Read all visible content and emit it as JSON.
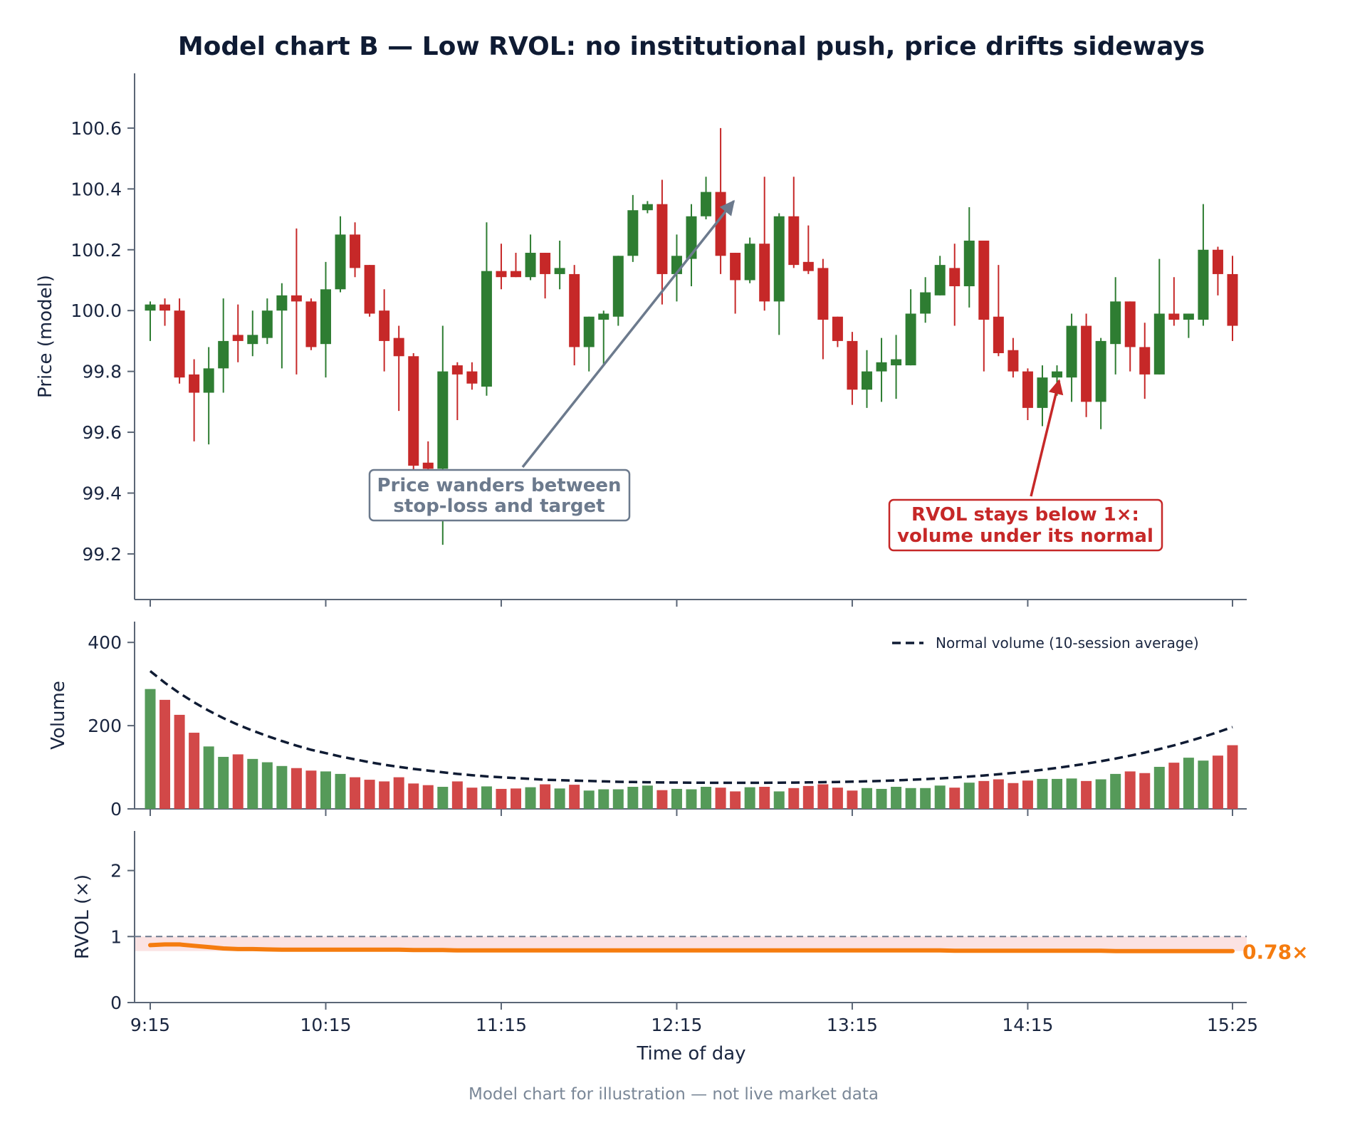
{
  "title": "Model chart B — Low RVOL: no institutional push, price drifts sideways",
  "footer": "Model chart for illustration — not live market data",
  "colors": {
    "up": "#2e7d32",
    "down": "#c62828",
    "up_volume": "#559a59",
    "down_volume": "#d24848",
    "normal_line": "#0f1b33",
    "rvol_line": "#f57c0f",
    "axis": "#5b6676",
    "annotation_grey": "#6c7a8d",
    "annotation_red": "#c62828",
    "rvol_band": "#fbe3e3"
  },
  "x_axis": {
    "label": "Time of day",
    "ticks": [
      {
        "bar": 0,
        "label": "9:15"
      },
      {
        "bar": 12,
        "label": "10:15"
      },
      {
        "bar": 24,
        "label": "11:15"
      },
      {
        "bar": 36,
        "label": "12:15"
      },
      {
        "bar": 48,
        "label": "13:15"
      },
      {
        "bar": 60,
        "label": "14:15"
      },
      {
        "bar": 74,
        "label": "15:25"
      }
    ]
  },
  "annotations": {
    "price_range": [
      "Price wanders between",
      "stop-loss and target"
    ],
    "rvol_note": [
      "RVOL stays below 1×:",
      "volume under its normal"
    ]
  },
  "chart_data": [
    {
      "type": "candlestick",
      "ylabel": "Price (model)",
      "ylim": [
        99.05,
        100.78
      ],
      "yticks": [
        "99.2",
        "99.4",
        "99.6",
        "99.8",
        "100.0",
        "100.2",
        "100.4",
        "100.6"
      ],
      "bar_interval_minutes": 5,
      "ohlc": [
        [
          100.0,
          100.03,
          99.9,
          100.02
        ],
        [
          100.02,
          100.04,
          99.95,
          100.0
        ],
        [
          100.0,
          100.04,
          99.76,
          99.78
        ],
        [
          99.79,
          99.84,
          99.57,
          99.73
        ],
        [
          99.73,
          99.88,
          99.56,
          99.81
        ],
        [
          99.81,
          100.04,
          99.73,
          99.9
        ],
        [
          99.92,
          100.02,
          99.83,
          99.9
        ],
        [
          99.89,
          100.0,
          99.85,
          99.92
        ],
        [
          99.91,
          100.04,
          99.89,
          100.0
        ],
        [
          100.0,
          100.09,
          99.81,
          100.05
        ],
        [
          100.05,
          100.27,
          99.79,
          100.03
        ],
        [
          100.03,
          100.04,
          99.87,
          99.88
        ],
        [
          99.89,
          100.16,
          99.78,
          100.07
        ],
        [
          100.07,
          100.31,
          100.06,
          100.25
        ],
        [
          100.25,
          100.29,
          100.11,
          100.14
        ],
        [
          100.15,
          100.15,
          99.98,
          99.99
        ],
        [
          100.0,
          100.07,
          99.8,
          99.9
        ],
        [
          99.91,
          99.95,
          99.67,
          99.85
        ],
        [
          99.85,
          99.86,
          99.46,
          99.49
        ],
        [
          99.5,
          99.57,
          99.47,
          99.48
        ],
        [
          99.48,
          99.95,
          99.23,
          99.8
        ],
        [
          99.82,
          99.83,
          99.64,
          99.79
        ],
        [
          99.8,
          99.83,
          99.74,
          99.76
        ],
        [
          99.75,
          100.29,
          99.72,
          100.13
        ],
        [
          100.13,
          100.22,
          100.07,
          100.11
        ],
        [
          100.13,
          100.19,
          100.11,
          100.11
        ],
        [
          100.11,
          100.25,
          100.1,
          100.19
        ],
        [
          100.19,
          100.19,
          100.04,
          100.12
        ],
        [
          100.12,
          100.23,
          100.07,
          100.14
        ],
        [
          100.12,
          100.15,
          99.82,
          99.88
        ],
        [
          99.88,
          99.98,
          99.8,
          99.98
        ],
        [
          99.97,
          100.0,
          99.82,
          99.99
        ],
        [
          99.98,
          100.18,
          99.95,
          100.18
        ],
        [
          100.18,
          100.38,
          100.16,
          100.33
        ],
        [
          100.33,
          100.36,
          100.32,
          100.35
        ],
        [
          100.35,
          100.43,
          100.02,
          100.12
        ],
        [
          100.12,
          100.25,
          100.03,
          100.18
        ],
        [
          100.17,
          100.35,
          100.08,
          100.31
        ],
        [
          100.31,
          100.44,
          100.3,
          100.39
        ],
        [
          100.39,
          100.6,
          100.12,
          100.18
        ],
        [
          100.19,
          100.19,
          99.99,
          100.1
        ],
        [
          100.1,
          100.24,
          100.09,
          100.22
        ],
        [
          100.22,
          100.44,
          100.0,
          100.03
        ],
        [
          100.03,
          100.32,
          99.92,
          100.31
        ],
        [
          100.31,
          100.44,
          100.14,
          100.15
        ],
        [
          100.16,
          100.28,
          100.12,
          100.13
        ],
        [
          100.14,
          100.17,
          99.84,
          99.97
        ],
        [
          99.98,
          99.98,
          99.88,
          99.9
        ],
        [
          99.9,
          99.93,
          99.69,
          99.74
        ],
        [
          99.74,
          99.87,
          99.68,
          99.8
        ],
        [
          99.8,
          99.91,
          99.7,
          99.83
        ],
        [
          99.82,
          99.92,
          99.71,
          99.84
        ],
        [
          99.82,
          100.07,
          99.82,
          99.99
        ],
        [
          99.99,
          100.11,
          99.96,
          100.06
        ],
        [
          100.05,
          100.18,
          100.05,
          100.15
        ],
        [
          100.14,
          100.22,
          99.95,
          100.08
        ],
        [
          100.08,
          100.34,
          100.01,
          100.23
        ],
        [
          100.23,
          100.23,
          99.8,
          99.97
        ],
        [
          99.98,
          100.15,
          99.85,
          99.86
        ],
        [
          99.87,
          99.91,
          99.78,
          99.8
        ],
        [
          99.8,
          99.81,
          99.64,
          99.68
        ],
        [
          99.68,
          99.82,
          99.62,
          99.78
        ],
        [
          99.78,
          99.82,
          99.72,
          99.8
        ],
        [
          99.78,
          99.99,
          99.7,
          99.95
        ],
        [
          99.95,
          99.99,
          99.65,
          99.7
        ],
        [
          99.7,
          99.91,
          99.61,
          99.9
        ],
        [
          99.89,
          100.11,
          99.79,
          100.03
        ],
        [
          100.03,
          100.03,
          99.8,
          99.88
        ],
        [
          99.88,
          99.96,
          99.71,
          99.79
        ],
        [
          99.79,
          100.17,
          99.79,
          99.99
        ],
        [
          99.99,
          100.11,
          99.95,
          99.97
        ],
        [
          99.97,
          99.99,
          99.91,
          99.99
        ],
        [
          99.97,
          100.35,
          99.95,
          100.2
        ],
        [
          100.2,
          100.21,
          100.05,
          100.12
        ],
        [
          100.12,
          100.18,
          99.9,
          99.95
        ]
      ]
    },
    {
      "type": "bar",
      "ylabel": "Volume",
      "ylim": [
        0,
        450
      ],
      "yticks": [
        "0",
        "200",
        "400"
      ],
      "legend": {
        "position": "top-right",
        "entries": [
          "Normal volume (10-session average)"
        ]
      },
      "volumes": [
        288,
        262,
        226,
        183,
        150,
        125,
        131,
        120,
        112,
        103,
        98,
        92,
        90,
        84,
        76,
        70,
        66,
        76,
        61,
        57,
        53,
        66,
        51,
        54,
        48,
        49,
        52,
        59,
        49,
        58,
        44,
        47,
        47,
        53,
        56,
        45,
        48,
        47,
        53,
        51,
        42,
        52,
        53,
        42,
        50,
        55,
        59,
        51,
        44,
        50,
        48,
        53,
        50,
        50,
        56,
        51,
        63,
        67,
        71,
        62,
        68,
        72,
        72,
        73,
        67,
        71,
        84,
        90,
        86,
        101,
        111,
        123,
        116,
        128,
        153
      ],
      "normal_volume": [
        331,
        303,
        278,
        256,
        236,
        218,
        202,
        188,
        175,
        163,
        152,
        142,
        134,
        126,
        119,
        112,
        106,
        101,
        96,
        92,
        88,
        84,
        81,
        78,
        76,
        74,
        72,
        70,
        69,
        68,
        67,
        66,
        65,
        64.5,
        64,
        63.5,
        63.3,
        63,
        62.8,
        62.7,
        62.6,
        62.6,
        62.7,
        62.9,
        63.2,
        63.6,
        64.1,
        64.7,
        65.4,
        66.3,
        67.3,
        68.5,
        69.9,
        71.5,
        73.3,
        75.4,
        77.7,
        80.3,
        83.2,
        86.4,
        90,
        94,
        98.4,
        103.3,
        108.6,
        114.4,
        120.8,
        127.8,
        135.4,
        143.7,
        152.7,
        162.5,
        173,
        184.4,
        196.6
      ]
    },
    {
      "type": "line",
      "ylabel": "RVOL (×)",
      "ylim": [
        0,
        2.6
      ],
      "yticks": [
        "0",
        "1",
        "2"
      ],
      "reference_line": 1.0,
      "last_value_label": "0.78×",
      "values": [
        0.87,
        0.88,
        0.88,
        0.86,
        0.84,
        0.82,
        0.81,
        0.81,
        0.805,
        0.8,
        0.8,
        0.8,
        0.8,
        0.8,
        0.8,
        0.8,
        0.8,
        0.8,
        0.795,
        0.795,
        0.795,
        0.79,
        0.79,
        0.79,
        0.79,
        0.79,
        0.79,
        0.79,
        0.79,
        0.79,
        0.79,
        0.79,
        0.79,
        0.79,
        0.79,
        0.79,
        0.79,
        0.79,
        0.79,
        0.79,
        0.79,
        0.79,
        0.79,
        0.79,
        0.79,
        0.79,
        0.79,
        0.79,
        0.79,
        0.79,
        0.79,
        0.79,
        0.79,
        0.79,
        0.79,
        0.785,
        0.785,
        0.785,
        0.785,
        0.785,
        0.785,
        0.785,
        0.785,
        0.785,
        0.785,
        0.785,
        0.78,
        0.78,
        0.78,
        0.78,
        0.78,
        0.78,
        0.78,
        0.78,
        0.78
      ]
    }
  ]
}
